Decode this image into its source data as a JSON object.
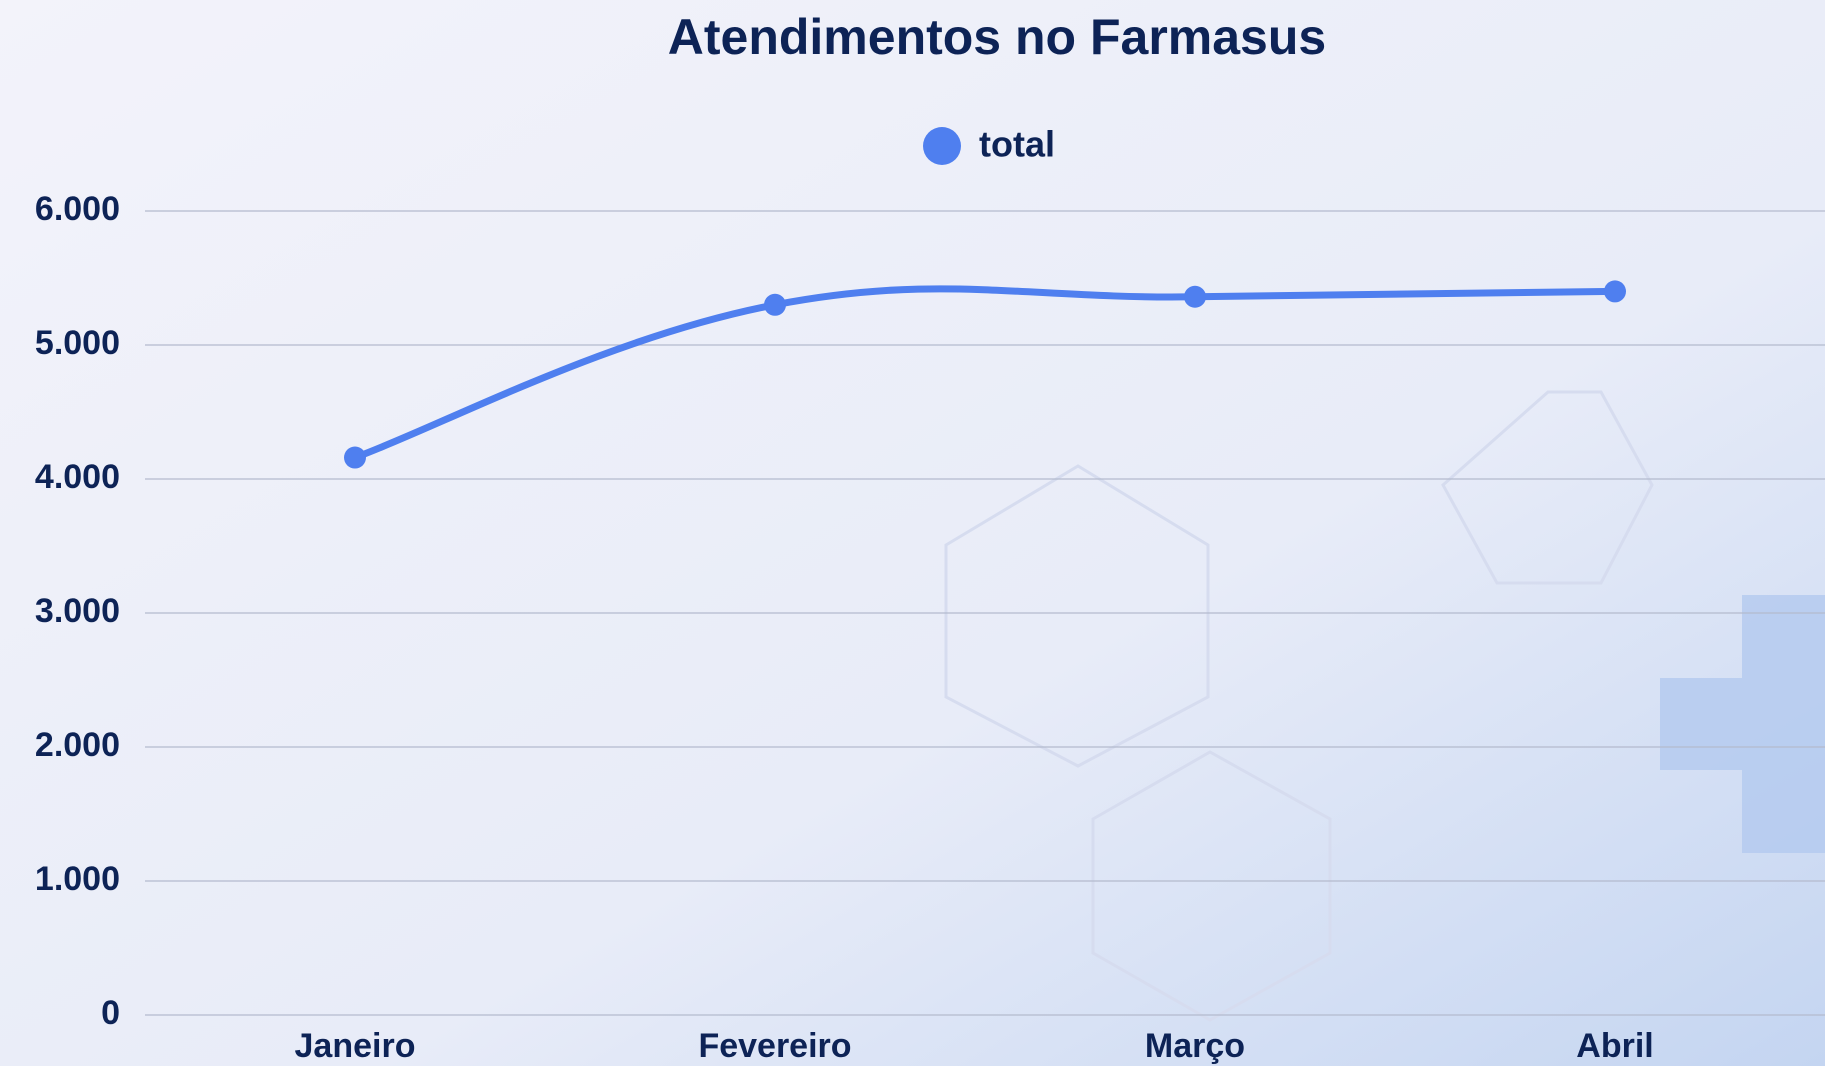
{
  "chart_data": {
    "type": "line",
    "title": "Atendimentos no Farmasus",
    "categories": [
      "Janeiro",
      "Fevereiro",
      "Março",
      "Abril"
    ],
    "series": [
      {
        "name": "total",
        "color": "#4f7fef",
        "values": [
          4160,
          5300,
          5360,
          5400
        ]
      }
    ],
    "ylim": [
      0,
      6000
    ],
    "yticks": [
      0,
      {
        "value": 1000,
        "label": "1.000"
      },
      {
        "value": 2000,
        "label": "2.000"
      },
      {
        "value": 3000,
        "label": "3.000"
      },
      {
        "value": 4000,
        "label": "4.000"
      },
      {
        "value": 5000,
        "label": "5.000"
      },
      {
        "value": 6000,
        "label": "6.000"
      }
    ],
    "grid": true,
    "legend": "top"
  }
}
